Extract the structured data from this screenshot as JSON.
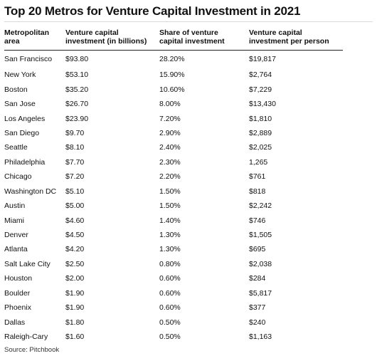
{
  "title": "Top 20 Metros for Venture Capital Investment in 2021",
  "columns": {
    "area": [
      "Metropolitan",
      "area"
    ],
    "investment": [
      "Venture capital",
      "investment (in billions)"
    ],
    "share": [
      "Share of venture",
      "capital investment"
    ],
    "per_person": [
      "Venture capital",
      "investment per person"
    ]
  },
  "rows": [
    {
      "area": "San Francisco",
      "investment": "$93.80",
      "share": "28.20%",
      "per_person": "$19,817"
    },
    {
      "area": "New York",
      "investment": "$53.10",
      "share": "15.90%",
      "per_person": "$2,764"
    },
    {
      "area": "Boston",
      "investment": "$35.20",
      "share": "10.60%",
      "per_person": "$7,229"
    },
    {
      "area": "San Jose",
      "investment": "$26.70",
      "share": "8.00%",
      "per_person": "$13,430"
    },
    {
      "area": "Los Angeles",
      "investment": "$23.90",
      "share": "7.20%",
      "per_person": "$1,810"
    },
    {
      "area": "San Diego",
      "investment": "$9.70",
      "share": "2.90%",
      "per_person": "$2,889"
    },
    {
      "area": "Seattle",
      "investment": "$8.10",
      "share": "2.40%",
      "per_person": "$2,025"
    },
    {
      "area": "Philadelphia",
      "investment": "$7.70",
      "share": "2.30%",
      "per_person": "1,265"
    },
    {
      "area": "Chicago",
      "investment": "$7.20",
      "share": "2.20%",
      "per_person": "$761"
    },
    {
      "area": "Washington DC",
      "investment": "$5.10",
      "share": "1.50%",
      "per_person": "$818"
    },
    {
      "area": "Austin",
      "investment": "$5.00",
      "share": "1.50%",
      "per_person": "$2,242"
    },
    {
      "area": "Miami",
      "investment": "$4.60",
      "share": "1.40%",
      "per_person": "$746"
    },
    {
      "area": "Denver",
      "investment": "$4.50",
      "share": "1.30%",
      "per_person": "$1,505"
    },
    {
      "area": "Atlanta",
      "investment": "$4.20",
      "share": "1.30%",
      "per_person": "$695"
    },
    {
      "area": "Salt Lake City",
      "investment": "$2.50",
      "share": "0.80%",
      "per_person": "$2,038"
    },
    {
      "area": "Houston",
      "investment": "$2.00",
      "share": "0.60%",
      "per_person": "$284"
    },
    {
      "area": "Boulder",
      "investment": "$1.90",
      "share": "0.60%",
      "per_person": "$5,817"
    },
    {
      "area": "Phoenix",
      "investment": "$1.90",
      "share": "0.60%",
      "per_person": "$377"
    },
    {
      "area": "Dallas",
      "investment": "$1.80",
      "share": "0.50%",
      "per_person": "$240"
    },
    {
      "area": "Raleigh-Cary",
      "investment": "$1.60",
      "share": "0.50%",
      "per_person": "$1,163"
    }
  ],
  "source": "Source: Pitchbook"
}
